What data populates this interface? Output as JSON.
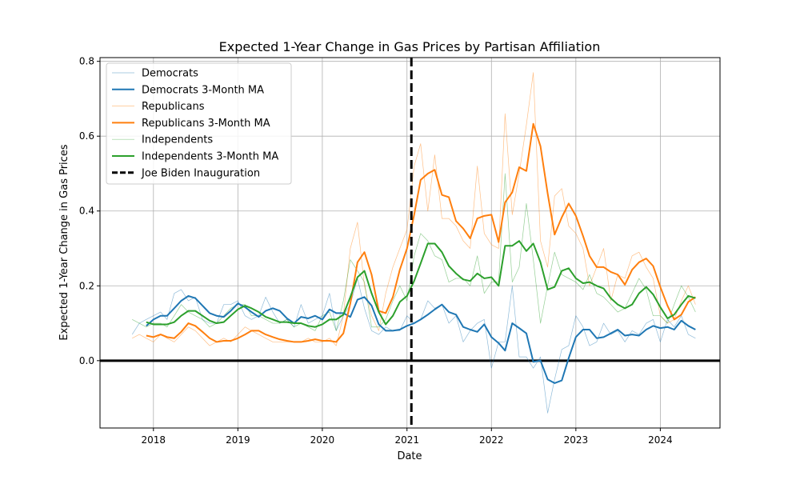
{
  "chart_data": {
    "type": "line",
    "title": "Expected 1-Year Change in Gas Prices by Partisan Affiliation",
    "xlabel": "Date",
    "ylabel": "Expected 1-Year Change in Gas Prices",
    "xlim": [
      "2017-05-15",
      "2024-09-15"
    ],
    "ylim": [
      -0.18,
      0.81
    ],
    "x_ticks": [
      "2018",
      "2019",
      "2020",
      "2021",
      "2022",
      "2023",
      "2024"
    ],
    "y_ticks": [
      "0.0",
      "0.2",
      "0.4",
      "0.6",
      "0.8"
    ],
    "grid": true,
    "legend_position": "top-left",
    "zero_line": 0,
    "vline": {
      "name": "Joe Biden Inauguration",
      "x": "2021-01-20"
    },
    "colors": {
      "democrats": "#1f77b4",
      "republicans": "#ff7f0e",
      "independents": "#2ca02c",
      "inauguration": "#000000"
    },
    "x": [
      "2017-10",
      "2017-11",
      "2017-12",
      "2018-01",
      "2018-02",
      "2018-03",
      "2018-04",
      "2018-05",
      "2018-06",
      "2018-07",
      "2018-08",
      "2018-09",
      "2018-10",
      "2018-11",
      "2018-12",
      "2019-01",
      "2019-02",
      "2019-03",
      "2019-04",
      "2019-05",
      "2019-06",
      "2019-07",
      "2019-08",
      "2019-09",
      "2019-10",
      "2019-11",
      "2019-12",
      "2020-01",
      "2020-02",
      "2020-03",
      "2020-04",
      "2020-05",
      "2020-06",
      "2020-07",
      "2020-08",
      "2020-09",
      "2020-10",
      "2020-11",
      "2020-12",
      "2021-01",
      "2021-02",
      "2021-03",
      "2021-04",
      "2021-05",
      "2021-06",
      "2021-07",
      "2021-08",
      "2021-09",
      "2021-10",
      "2021-11",
      "2021-12",
      "2022-01",
      "2022-02",
      "2022-03",
      "2022-04",
      "2022-05",
      "2022-06",
      "2022-07",
      "2022-08",
      "2022-09",
      "2022-10",
      "2022-11",
      "2022-12",
      "2023-01",
      "2023-02",
      "2023-03",
      "2023-04",
      "2023-05",
      "2023-06",
      "2023-07",
      "2023-08",
      "2023-09",
      "2023-10",
      "2023-11",
      "2023-12",
      "2024-01",
      "2024-02",
      "2024-03",
      "2024-04",
      "2024-05",
      "2024-06"
    ],
    "series": [
      {
        "name": "Democrats",
        "key": "democrats",
        "style": "thin",
        "values": [
          0.07,
          0.1,
          0.11,
          0.12,
          0.13,
          0.11,
          0.18,
          0.19,
          0.16,
          0.17,
          0.11,
          0.1,
          0.1,
          0.15,
          0.15,
          0.16,
          0.12,
          0.11,
          0.12,
          0.17,
          0.13,
          0.1,
          0.11,
          0.09,
          0.15,
          0.1,
          0.11,
          0.12,
          0.18,
          0.08,
          0.12,
          0.15,
          0.22,
          0.14,
          0.08,
          0.07,
          0.09,
          0.08,
          0.08,
          0.12,
          0.1,
          0.11,
          0.16,
          0.14,
          0.15,
          0.1,
          0.12,
          0.05,
          0.08,
          0.1,
          0.11,
          -0.02,
          0.05,
          0.05,
          0.2,
          0.01,
          0.01,
          -0.02,
          0.01,
          -0.14,
          -0.05,
          0.03,
          0.04,
          0.12,
          0.09,
          0.04,
          0.05,
          0.1,
          0.07,
          0.08,
          0.05,
          0.08,
          0.07,
          0.1,
          0.11,
          0.05,
          0.11,
          0.09,
          0.12,
          0.07,
          0.06
        ]
      },
      {
        "name": "Democrats 3-Month MA",
        "key": "democrats",
        "style": "thick",
        "values": [
          null,
          null,
          0.093,
          0.11,
          0.12,
          0.12,
          0.14,
          0.16,
          0.173,
          0.167,
          0.147,
          0.127,
          0.12,
          0.117,
          0.133,
          0.153,
          0.143,
          0.13,
          0.117,
          0.133,
          0.14,
          0.133,
          0.113,
          0.1,
          0.117,
          0.113,
          0.12,
          0.11,
          0.137,
          0.127,
          0.127,
          0.117,
          0.163,
          0.17,
          0.147,
          0.097,
          0.08,
          0.08,
          0.083,
          0.093,
          0.1,
          0.11,
          0.123,
          0.137,
          0.15,
          0.13,
          0.123,
          0.09,
          0.083,
          0.077,
          0.097,
          0.063,
          0.047,
          0.027,
          0.1,
          0.087,
          0.073,
          -0.003,
          0.0,
          -0.05,
          -0.06,
          -0.053,
          0.007,
          0.063,
          0.083,
          0.083,
          0.06,
          0.063,
          0.073,
          0.083,
          0.067,
          0.07,
          0.067,
          0.083,
          0.093,
          0.087,
          0.09,
          0.083,
          0.107,
          0.093,
          0.083
        ]
      },
      {
        "name": "Republicans",
        "key": "republicans",
        "style": "thin",
        "values": [
          0.06,
          0.07,
          0.06,
          0.05,
          0.07,
          0.06,
          0.05,
          0.07,
          0.09,
          0.08,
          0.06,
          0.04,
          0.05,
          0.06,
          0.05,
          0.07,
          0.09,
          0.08,
          0.07,
          0.06,
          0.05,
          0.05,
          0.05,
          0.05,
          0.05,
          0.06,
          0.05,
          0.05,
          0.06,
          0.04,
          0.12,
          0.3,
          0.37,
          0.2,
          0.12,
          0.08,
          0.18,
          0.25,
          0.3,
          0.35,
          0.52,
          0.58,
          0.4,
          0.55,
          0.38,
          0.38,
          0.36,
          0.32,
          0.3,
          0.52,
          0.34,
          0.31,
          0.3,
          0.66,
          0.39,
          0.5,
          0.63,
          0.77,
          0.32,
          0.25,
          0.44,
          0.46,
          0.36,
          0.34,
          0.3,
          0.2,
          0.25,
          0.3,
          0.16,
          0.23,
          0.22,
          0.28,
          0.29,
          0.25,
          0.22,
          0.12,
          0.1,
          0.11,
          0.16,
          0.2,
          0.15
        ]
      },
      {
        "name": "Republicans 3-Month MA",
        "key": "republicans",
        "style": "thick",
        "values": [
          null,
          null,
          0.067,
          0.063,
          0.07,
          0.063,
          0.06,
          0.077,
          0.1,
          0.093,
          0.077,
          0.06,
          0.05,
          0.053,
          0.053,
          0.06,
          0.07,
          0.08,
          0.08,
          0.07,
          0.063,
          0.057,
          0.053,
          0.05,
          0.05,
          0.053,
          0.057,
          0.053,
          0.053,
          0.05,
          0.073,
          0.153,
          0.263,
          0.29,
          0.23,
          0.133,
          0.127,
          0.17,
          0.243,
          0.3,
          0.39,
          0.483,
          0.5,
          0.51,
          0.443,
          0.437,
          0.373,
          0.353,
          0.327,
          0.38,
          0.387,
          0.39,
          0.317,
          0.423,
          0.45,
          0.517,
          0.507,
          0.633,
          0.573,
          0.447,
          0.337,
          0.383,
          0.42,
          0.387,
          0.333,
          0.28,
          0.25,
          0.25,
          0.237,
          0.23,
          0.203,
          0.243,
          0.263,
          0.273,
          0.253,
          0.197,
          0.147,
          0.11,
          0.123,
          0.157,
          0.17
        ]
      },
      {
        "name": "Independents",
        "key": "independents",
        "style": "thin",
        "values": [
          0.11,
          0.1,
          0.09,
          0.1,
          0.1,
          0.09,
          0.12,
          0.15,
          0.13,
          0.12,
          0.11,
          0.09,
          0.1,
          0.12,
          0.14,
          0.15,
          0.15,
          0.12,
          0.12,
          0.11,
          0.1,
          0.1,
          0.11,
          0.09,
          0.1,
          0.09,
          0.08,
          0.12,
          0.13,
          0.08,
          0.16,
          0.27,
          0.24,
          0.21,
          0.09,
          0.09,
          0.11,
          0.16,
          0.2,
          0.16,
          0.28,
          0.34,
          0.32,
          0.28,
          0.27,
          0.21,
          0.22,
          0.22,
          0.2,
          0.28,
          0.18,
          0.21,
          0.21,
          0.5,
          0.21,
          0.25,
          0.42,
          0.27,
          0.1,
          0.2,
          0.29,
          0.23,
          0.22,
          0.21,
          0.19,
          0.23,
          0.18,
          0.17,
          0.15,
          0.13,
          0.14,
          0.18,
          0.22,
          0.19,
          0.12,
          0.12,
          0.1,
          0.15,
          0.2,
          0.17,
          0.13
        ]
      },
      {
        "name": "Independents 3-Month MA",
        "key": "independents",
        "style": "thick",
        "values": [
          null,
          null,
          0.103,
          0.097,
          0.097,
          0.097,
          0.103,
          0.12,
          0.133,
          0.133,
          0.12,
          0.107,
          0.1,
          0.103,
          0.12,
          0.137,
          0.147,
          0.14,
          0.13,
          0.117,
          0.11,
          0.103,
          0.103,
          0.1,
          0.1,
          0.093,
          0.09,
          0.097,
          0.11,
          0.11,
          0.123,
          0.17,
          0.223,
          0.24,
          0.18,
          0.13,
          0.097,
          0.12,
          0.157,
          0.173,
          0.213,
          0.26,
          0.313,
          0.313,
          0.29,
          0.253,
          0.233,
          0.217,
          0.213,
          0.233,
          0.22,
          0.223,
          0.2,
          0.307,
          0.307,
          0.32,
          0.293,
          0.313,
          0.263,
          0.19,
          0.197,
          0.24,
          0.247,
          0.22,
          0.207,
          0.21,
          0.2,
          0.193,
          0.167,
          0.15,
          0.14,
          0.15,
          0.18,
          0.197,
          0.177,
          0.143,
          0.113,
          0.123,
          0.15,
          0.173,
          0.167
        ]
      }
    ]
  }
}
